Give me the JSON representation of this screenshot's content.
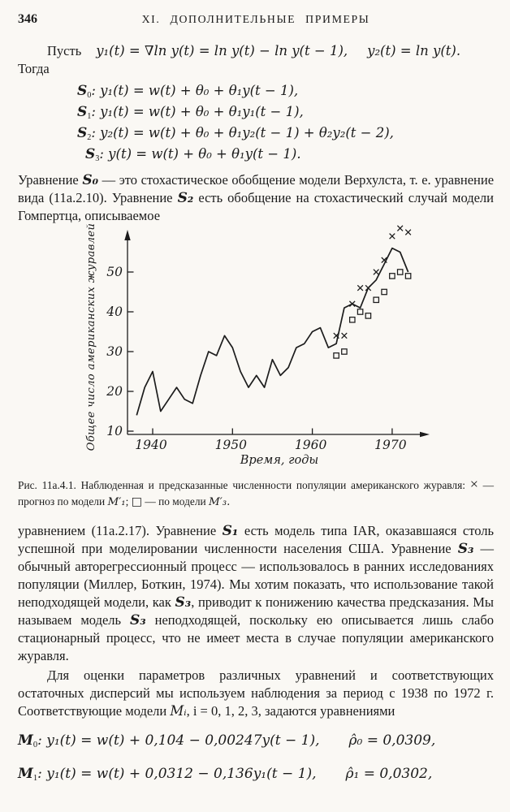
{
  "page": {
    "number": "346",
    "header": "XI. ДОПОЛНИТЕЛЬНЫЕ ПРИМЕРЫ"
  },
  "intro": {
    "lead_word": "Пусть",
    "math1": "y₁(t) = ∇ln y(t) = ln y(t) − ln y(t − 1),",
    "math2": "y₂(t) = ln y(t).",
    "then_word": "Тогда"
  },
  "model_classes": [
    {
      "cls": "S",
      "sub": "0",
      "eq": ":  y₁(t) = w(t) + θ₀ + θ₁y(t − 1),"
    },
    {
      "cls": "S",
      "sub": "1",
      "eq": ":  y₁(t) = w(t) + θ₀ + θ₁y₁(t − 1),"
    },
    {
      "cls": "S",
      "sub": "2",
      "eq": ":  y₂(t) = w(t) + θ₀ + θ₁y₂(t − 1) + θ₂y₂(t − 2),"
    },
    {
      "cls": "S",
      "sub": "3",
      "eq": ":  y(t) = w(t) + θ₀ + θ₁y(t − 1)."
    }
  ],
  "p1": {
    "t1": "Уравнение ",
    "m1": "S₀",
    "t2": " — это стохастическое обобщение модели Верхулста, т. е. уравнение вида (11а.2.10). Уравнение ",
    "m2": "S₂",
    "t3": " есть обобщение на стохастический случай модели Гомпертца, описываемое"
  },
  "caption": {
    "label": "Рис. 11а.4.1.",
    "t1": " Наблюденная и предсказанные численности популяции американского журавля: ",
    "x_sym": "×",
    "t2": " — прогноз по модели ",
    "m1": "M′₁",
    "sep": "; ",
    "sq_sym": "□",
    "t3": " — по модели ",
    "m3": "M′₃."
  },
  "p2": {
    "t1": "уравнением (11а.2.17). Уравнение ",
    "m1": "S₁",
    "t2": " есть модель типа IAR, оказавшаяся столь успешной при моделировании численности населения США. Уравнение ",
    "m2": "S₃",
    "t3": " — обычный авторегрессионный процесс — использовалось в ранних исследованиях популяции (Миллер, Боткин, 1974). Мы хотим показать, что использование такой неподходящей модели, как ",
    "m3": "S₃",
    "t4": ", приводит к понижению качества предсказания. Мы называем модель ",
    "m4": "S₃",
    "t5": " неподходящей, поскольку ею описывается лишь слабо стационарный процесс, что не имеет места в случае популяции американского журавля."
  },
  "p3": {
    "t1": "Для оценки параметров различных уравнений и соответствующих остаточных дисперсий мы используем наблюдения за период с 1938 по 1972 г. Соответствующие модели ",
    "m1": "Mᵢ",
    "t2": ", i = 0, 1, 2, 3, задаются уравнениями"
  },
  "models": [
    {
      "name": "M",
      "sub": "0",
      "eq": ":  y₁(t) = w(t) + 0,104 − 0,00247y(t − 1),",
      "rho": "ρ̂₀ = 0,0309,"
    },
    {
      "name": "M",
      "sub": "1",
      "eq": ":  y₁(t) = w(t) + 0,0312 − 0,136y₁(t − 1),",
      "rho": "ρ̂₁ = 0,0302,"
    }
  ],
  "chart_data": {
    "type": "line",
    "title": "",
    "xlabel": "Время, годы",
    "ylabel": "Общее число американских журавлей",
    "x_ticks": [
      1940,
      1950,
      1960,
      1970
    ],
    "y_ticks": [
      10,
      20,
      30,
      40,
      50
    ],
    "xlim": [
      1937,
      1974
    ],
    "ylim": [
      8,
      62
    ],
    "grid": false,
    "legend_position": "none",
    "series": [
      {
        "name": "Наблюденная численность американских журавлей",
        "type": "line",
        "marker": "none",
        "x": [
          1938,
          1939,
          1940,
          1941,
          1942,
          1943,
          1944,
          1945,
          1946,
          1947,
          1948,
          1949,
          1950,
          1951,
          1952,
          1953,
          1954,
          1955,
          1956,
          1957,
          1958,
          1959,
          1960,
          1961,
          1962,
          1963,
          1964,
          1965,
          1966,
          1967,
          1968,
          1969,
          1970,
          1971,
          1972
        ],
        "values": [
          14,
          21,
          25,
          15,
          18,
          21,
          18,
          17,
          24,
          30,
          29,
          34,
          31,
          25,
          21,
          24,
          21,
          28,
          24,
          26,
          31,
          32,
          35,
          36,
          31,
          32,
          41,
          42,
          41,
          46,
          48,
          52,
          56,
          55,
          50
        ]
      },
      {
        "name": "Прогноз по модели M′₁",
        "type": "scatter",
        "marker": "x",
        "x": [
          1963,
          1964,
          1965,
          1966,
          1967,
          1968,
          1969,
          1970,
          1971,
          1972
        ],
        "values": [
          34,
          34,
          42,
          46,
          46,
          50,
          53,
          59,
          61,
          60
        ]
      },
      {
        "name": "Прогноз по модели M′₃",
        "type": "scatter",
        "marker": "square",
        "x": [
          1963,
          1964,
          1965,
          1966,
          1967,
          1968,
          1969,
          1970,
          1971,
          1972
        ],
        "values": [
          29,
          30,
          38,
          40,
          39,
          43,
          45,
          49,
          50,
          49
        ]
      }
    ]
  }
}
